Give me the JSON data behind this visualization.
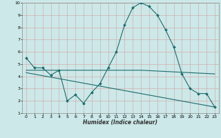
{
  "xlabel": "Humidex (Indice chaleur)",
  "background_color": "#cce8e8",
  "grid_color": "#d4a0a0",
  "line_color": "#1a6b6b",
  "xlim_min": -0.5,
  "xlim_max": 23.5,
  "ylim_min": 1,
  "ylim_max": 10,
  "xticks": [
    0,
    1,
    2,
    3,
    4,
    5,
    6,
    7,
    8,
    9,
    10,
    11,
    12,
    13,
    14,
    15,
    16,
    17,
    18,
    19,
    20,
    21,
    22,
    23
  ],
  "yticks": [
    1,
    2,
    3,
    4,
    5,
    6,
    7,
    8,
    9,
    10
  ],
  "line1_x": [
    0,
    1,
    2,
    3,
    4,
    5,
    6,
    7,
    8,
    9,
    10,
    11,
    12,
    13,
    14,
    15,
    16,
    17,
    18,
    19,
    20,
    21,
    22,
    23
  ],
  "line1_y": [
    5.5,
    4.7,
    4.7,
    4.1,
    4.5,
    2.0,
    2.5,
    1.8,
    2.7,
    3.4,
    4.7,
    6.0,
    8.2,
    9.6,
    10.0,
    9.7,
    9.0,
    7.8,
    6.4,
    4.2,
    3.0,
    2.6,
    2.6,
    1.5
  ],
  "line2_x": [
    0,
    10,
    14,
    23
  ],
  "line2_y": [
    4.5,
    4.5,
    4.5,
    4.2
  ],
  "line3_x": [
    0,
    23
  ],
  "line3_y": [
    4.3,
    1.5
  ],
  "xlabel_fontsize": 5.5,
  "tick_fontsize": 4.5,
  "linewidth": 0.8,
  "marker_size": 2.0
}
